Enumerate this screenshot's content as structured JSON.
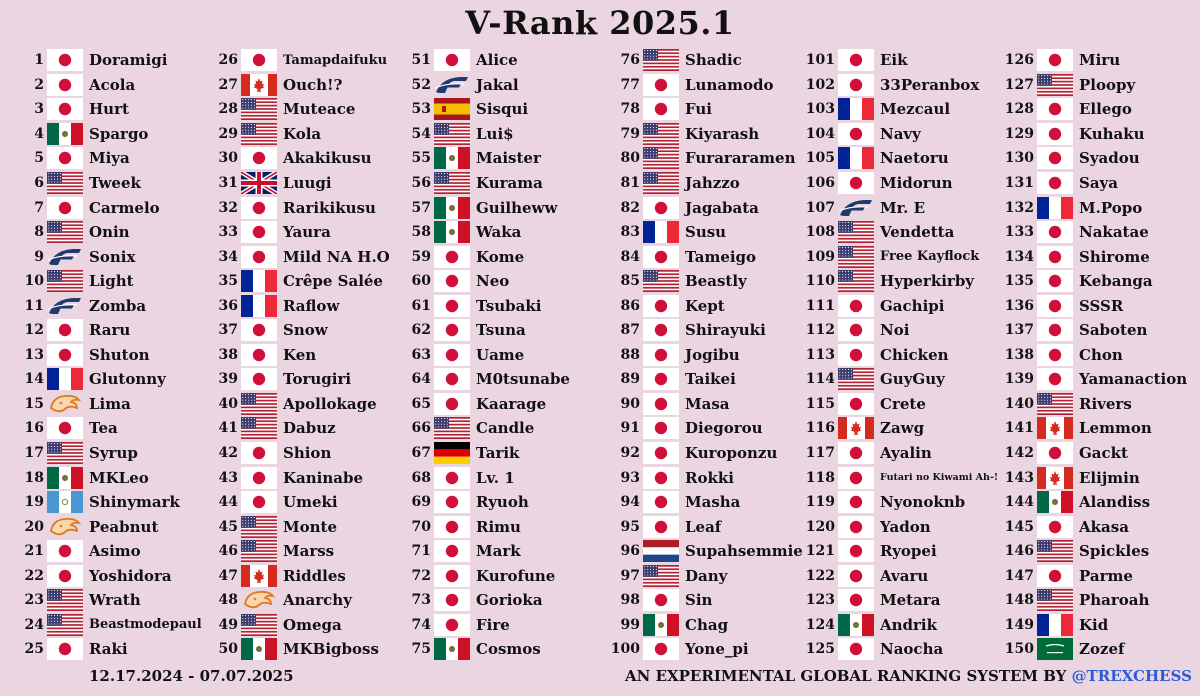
{
  "title": "V-Rank 2025.1",
  "footer": {
    "date_range": "12.17.2024 - 07.07.2025",
    "system_text": "AN EXPERIMENTAL GLOBAL RANKING SYSTEM BY",
    "handle": "@TREXCHESS"
  },
  "flag_icons": {
    "JP": "japan-flag-icon",
    "US": "usa-flag-icon",
    "MX": "mexico-flag-icon",
    "FR": "france-flag-icon",
    "CA": "canada-flag-icon",
    "UK": "uk-flag-icon",
    "ES": "spain-flag-icon",
    "DE": "germany-flag-icon",
    "NL": "netherlands-flag-icon",
    "SA": "saudi-arabia-flag-icon",
    "GT": "guatemala-flag-icon",
    "F": "f-team-logo-icon",
    "P": "flame-team-logo-icon"
  },
  "colors": {
    "background": "#ead5e1",
    "handle": "#2a5bd7"
  },
  "columns": [
    [
      {
        "rank": "1",
        "flag": "JP",
        "name": "Doramigi"
      },
      {
        "rank": "2",
        "flag": "JP",
        "name": "Acola"
      },
      {
        "rank": "3",
        "flag": "JP",
        "name": "Hurt"
      },
      {
        "rank": "4",
        "flag": "MX",
        "name": "Spargo"
      },
      {
        "rank": "5",
        "flag": "JP",
        "name": "Miya"
      },
      {
        "rank": "6",
        "flag": "US",
        "name": "Tweek"
      },
      {
        "rank": "7",
        "flag": "JP",
        "name": "Carmelo"
      },
      {
        "rank": "8",
        "flag": "US",
        "name": "Onin"
      },
      {
        "rank": "9",
        "flag": "F",
        "name": "Sonix"
      },
      {
        "rank": "10",
        "flag": "US",
        "name": "Light"
      },
      {
        "rank": "11",
        "flag": "F",
        "name": "Zomba"
      },
      {
        "rank": "12",
        "flag": "JP",
        "name": "Raru"
      },
      {
        "rank": "13",
        "flag": "JP",
        "name": "Shuton"
      },
      {
        "rank": "14",
        "flag": "FR",
        "name": "Glutonny"
      },
      {
        "rank": "15",
        "flag": "P",
        "name": "Lima"
      },
      {
        "rank": "16",
        "flag": "JP",
        "name": "Tea"
      },
      {
        "rank": "17",
        "flag": "US",
        "name": "Syrup"
      },
      {
        "rank": "18",
        "flag": "MX",
        "name": "MKLeo"
      },
      {
        "rank": "19",
        "flag": "GT",
        "name": "Shinymark"
      },
      {
        "rank": "20",
        "flag": "P",
        "name": "Peabnut"
      },
      {
        "rank": "21",
        "flag": "JP",
        "name": "Asimo"
      },
      {
        "rank": "22",
        "flag": "JP",
        "name": "Yoshidora"
      },
      {
        "rank": "23",
        "flag": "US",
        "name": "Wrath"
      },
      {
        "rank": "24",
        "flag": "US",
        "name": "Beastmodepaul"
      },
      {
        "rank": "25",
        "flag": "JP",
        "name": "Raki"
      }
    ],
    [
      {
        "rank": "26",
        "flag": "JP",
        "name": "Tamapdaifuku"
      },
      {
        "rank": "27",
        "flag": "CA",
        "name": "Ouch!?"
      },
      {
        "rank": "28",
        "flag": "US",
        "name": "Muteace"
      },
      {
        "rank": "29",
        "flag": "US",
        "name": "Kola"
      },
      {
        "rank": "30",
        "flag": "JP",
        "name": "Akakikusu"
      },
      {
        "rank": "31",
        "flag": "UK",
        "name": "Luugi"
      },
      {
        "rank": "32",
        "flag": "JP",
        "name": "Rarikikusu"
      },
      {
        "rank": "33",
        "flag": "JP",
        "name": "Yaura"
      },
      {
        "rank": "34",
        "flag": "JP",
        "name": "Mild NA H.O"
      },
      {
        "rank": "35",
        "flag": "FR",
        "name": "Crêpe Salée"
      },
      {
        "rank": "36",
        "flag": "FR",
        "name": "Raflow"
      },
      {
        "rank": "37",
        "flag": "JP",
        "name": "Snow"
      },
      {
        "rank": "38",
        "flag": "JP",
        "name": "Ken"
      },
      {
        "rank": "39",
        "flag": "JP",
        "name": "Torugiri"
      },
      {
        "rank": "40",
        "flag": "US",
        "name": "Apollokage"
      },
      {
        "rank": "41",
        "flag": "US",
        "name": "Dabuz"
      },
      {
        "rank": "42",
        "flag": "JP",
        "name": "Shion"
      },
      {
        "rank": "43",
        "flag": "JP",
        "name": "Kaninabe"
      },
      {
        "rank": "44",
        "flag": "JP",
        "name": "Umeki"
      },
      {
        "rank": "45",
        "flag": "US",
        "name": "Monte"
      },
      {
        "rank": "46",
        "flag": "US",
        "name": "Marss"
      },
      {
        "rank": "47",
        "flag": "CA",
        "name": "Riddles"
      },
      {
        "rank": "48",
        "flag": "P",
        "name": "Anarchy"
      },
      {
        "rank": "49",
        "flag": "US",
        "name": "Omega"
      },
      {
        "rank": "50",
        "flag": "MX",
        "name": "MKBigboss"
      }
    ],
    [
      {
        "rank": "51",
        "flag": "JP",
        "name": "Alice"
      },
      {
        "rank": "52",
        "flag": "F",
        "name": "Jakal"
      },
      {
        "rank": "53",
        "flag": "ES",
        "name": "Sisqui"
      },
      {
        "rank": "54",
        "flag": "US",
        "name": "Lui$"
      },
      {
        "rank": "55",
        "flag": "MX",
        "name": "Maister"
      },
      {
        "rank": "56",
        "flag": "US",
        "name": "Kurama"
      },
      {
        "rank": "57",
        "flag": "MX",
        "name": "Guilheww"
      },
      {
        "rank": "58",
        "flag": "MX",
        "name": "Waka"
      },
      {
        "rank": "59",
        "flag": "JP",
        "name": "Kome"
      },
      {
        "rank": "60",
        "flag": "JP",
        "name": "Neo"
      },
      {
        "rank": "61",
        "flag": "JP",
        "name": "Tsubaki"
      },
      {
        "rank": "62",
        "flag": "JP",
        "name": "Tsuna"
      },
      {
        "rank": "63",
        "flag": "JP",
        "name": "Uame"
      },
      {
        "rank": "64",
        "flag": "JP",
        "name": "M0tsunabe"
      },
      {
        "rank": "65",
        "flag": "JP",
        "name": "Kaarage"
      },
      {
        "rank": "66",
        "flag": "US",
        "name": "Candle"
      },
      {
        "rank": "67",
        "flag": "DE",
        "name": "Tarik"
      },
      {
        "rank": "68",
        "flag": "JP",
        "name": "Lv. 1"
      },
      {
        "rank": "69",
        "flag": "JP",
        "name": "Ryuoh"
      },
      {
        "rank": "70",
        "flag": "JP",
        "name": "Rimu"
      },
      {
        "rank": "71",
        "flag": "JP",
        "name": "Mark"
      },
      {
        "rank": "72",
        "flag": "JP",
        "name": "Kurofune"
      },
      {
        "rank": "73",
        "flag": "JP",
        "name": "Gorioka"
      },
      {
        "rank": "74",
        "flag": "JP",
        "name": "Fire"
      },
      {
        "rank": "75",
        "flag": "MX",
        "name": "Cosmos"
      }
    ],
    [
      {
        "rank": "76",
        "flag": "US",
        "name": "Shadic"
      },
      {
        "rank": "77",
        "flag": "JP",
        "name": "Lunamodo"
      },
      {
        "rank": "78",
        "flag": "JP",
        "name": "Fui"
      },
      {
        "rank": "79",
        "flag": "US",
        "name": "Kiyarash"
      },
      {
        "rank": "80",
        "flag": "US",
        "name": "Furararamen"
      },
      {
        "rank": "81",
        "flag": "US",
        "name": "Jahzzo"
      },
      {
        "rank": "82",
        "flag": "JP",
        "name": "Jagabata"
      },
      {
        "rank": "83",
        "flag": "FR",
        "name": "Susu"
      },
      {
        "rank": "84",
        "flag": "JP",
        "name": "Tameigo"
      },
      {
        "rank": "85",
        "flag": "US",
        "name": "Beastly"
      },
      {
        "rank": "86",
        "flag": "JP",
        "name": "Kept"
      },
      {
        "rank": "87",
        "flag": "JP",
        "name": "Shirayuki"
      },
      {
        "rank": "88",
        "flag": "JP",
        "name": "Jogibu"
      },
      {
        "rank": "89",
        "flag": "JP",
        "name": "Taikei"
      },
      {
        "rank": "90",
        "flag": "JP",
        "name": "Masa"
      },
      {
        "rank": "91",
        "flag": "JP",
        "name": "Diegorou"
      },
      {
        "rank": "92",
        "flag": "JP",
        "name": "Kuroponzu"
      },
      {
        "rank": "93",
        "flag": "JP",
        "name": "Rokki"
      },
      {
        "rank": "94",
        "flag": "JP",
        "name": "Masha"
      },
      {
        "rank": "95",
        "flag": "JP",
        "name": "Leaf"
      },
      {
        "rank": "96",
        "flag": "NL",
        "name": "Supahsemmie"
      },
      {
        "rank": "97",
        "flag": "US",
        "name": "Dany"
      },
      {
        "rank": "98",
        "flag": "JP",
        "name": "Sin"
      },
      {
        "rank": "99",
        "flag": "MX",
        "name": "Chag"
      },
      {
        "rank": "100",
        "flag": "JP",
        "name": "Yone_pi"
      }
    ],
    [
      {
        "rank": "101",
        "flag": "JP",
        "name": "Eik"
      },
      {
        "rank": "102",
        "flag": "JP",
        "name": "33Peranbox"
      },
      {
        "rank": "103",
        "flag": "FR",
        "name": "Mezcaul"
      },
      {
        "rank": "104",
        "flag": "JP",
        "name": "Navy"
      },
      {
        "rank": "105",
        "flag": "FR",
        "name": "Naetoru"
      },
      {
        "rank": "106",
        "flag": "JP",
        "name": "Midorun"
      },
      {
        "rank": "107",
        "flag": "F",
        "name": "Mr. E"
      },
      {
        "rank": "108",
        "flag": "US",
        "name": "Vendetta"
      },
      {
        "rank": "109",
        "flag": "US",
        "name": "Free Kayflock"
      },
      {
        "rank": "110",
        "flag": "US",
        "name": "Hyperkirby"
      },
      {
        "rank": "111",
        "flag": "JP",
        "name": "Gachipi"
      },
      {
        "rank": "112",
        "flag": "JP",
        "name": "Noi"
      },
      {
        "rank": "113",
        "flag": "JP",
        "name": "Chicken"
      },
      {
        "rank": "114",
        "flag": "US",
        "name": "GuyGuy"
      },
      {
        "rank": "115",
        "flag": "JP",
        "name": "Crete"
      },
      {
        "rank": "116",
        "flag": "CA",
        "name": "Zawg"
      },
      {
        "rank": "117",
        "flag": "JP",
        "name": "Ayalin"
      },
      {
        "rank": "118",
        "flag": "JP",
        "name": "Futari no Kiwami Ah-!"
      },
      {
        "rank": "119",
        "flag": "JP",
        "name": "Nyonoknb"
      },
      {
        "rank": "120",
        "flag": "JP",
        "name": "Yadon"
      },
      {
        "rank": "121",
        "flag": "JP",
        "name": "Ryopei"
      },
      {
        "rank": "122",
        "flag": "JP",
        "name": "Avaru"
      },
      {
        "rank": "123",
        "flag": "JP",
        "name": "Metara"
      },
      {
        "rank": "124",
        "flag": "MX",
        "name": "Andrik"
      },
      {
        "rank": "125",
        "flag": "JP",
        "name": "Naocha"
      }
    ],
    [
      {
        "rank": "126",
        "flag": "JP",
        "name": "Miru"
      },
      {
        "rank": "127",
        "flag": "US",
        "name": "Ploopy"
      },
      {
        "rank": "128",
        "flag": "JP",
        "name": "Ellego"
      },
      {
        "rank": "129",
        "flag": "JP",
        "name": "Kuhaku"
      },
      {
        "rank": "130",
        "flag": "JP",
        "name": "Syadou"
      },
      {
        "rank": "131",
        "flag": "JP",
        "name": "Saya"
      },
      {
        "rank": "132",
        "flag": "FR",
        "name": "M.Popo"
      },
      {
        "rank": "133",
        "flag": "JP",
        "name": "Nakatae"
      },
      {
        "rank": "134",
        "flag": "JP",
        "name": "Shirome"
      },
      {
        "rank": "135",
        "flag": "JP",
        "name": "Kebanga"
      },
      {
        "rank": "136",
        "flag": "JP",
        "name": "SSSR"
      },
      {
        "rank": "137",
        "flag": "JP",
        "name": "Saboten"
      },
      {
        "rank": "138",
        "flag": "JP",
        "name": "Chon"
      },
      {
        "rank": "139",
        "flag": "JP",
        "name": "Yamanaction"
      },
      {
        "rank": "140",
        "flag": "US",
        "name": "Rivers"
      },
      {
        "rank": "141",
        "flag": "CA",
        "name": "Lemmon"
      },
      {
        "rank": "142",
        "flag": "JP",
        "name": "Gackt"
      },
      {
        "rank": "143",
        "flag": "CA",
        "name": "Elijmin"
      },
      {
        "rank": "144",
        "flag": "MX",
        "name": "Alandiss"
      },
      {
        "rank": "145",
        "flag": "JP",
        "name": "Akasa"
      },
      {
        "rank": "146",
        "flag": "US",
        "name": "Spickles"
      },
      {
        "rank": "147",
        "flag": "JP",
        "name": "Parme"
      },
      {
        "rank": "148",
        "flag": "US",
        "name": "Pharoah"
      },
      {
        "rank": "149",
        "flag": "FR",
        "name": "Kid"
      },
      {
        "rank": "150",
        "flag": "SA",
        "name": "Zozef"
      }
    ]
  ]
}
